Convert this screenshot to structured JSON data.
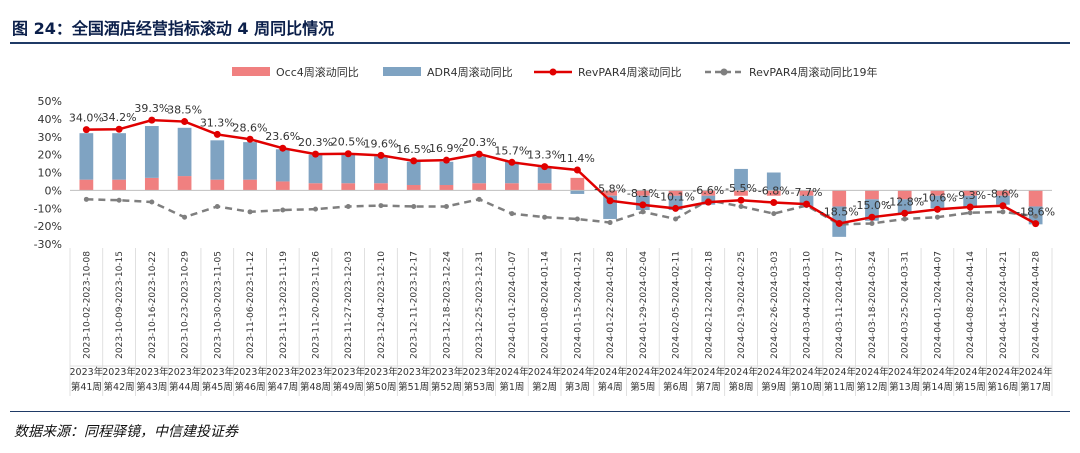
{
  "figure": {
    "title": "图 24：全国酒店经营指标滚动 4 周同比情况",
    "source": "数据来源：同程驿镜，中信建投证券"
  },
  "colors": {
    "occ": "#f08080",
    "adr": "#7fa3c2",
    "revpar": "#e00000",
    "revpar19": "#7f7f7f",
    "title": "#0b1f4a",
    "rule": "#1f3a66"
  },
  "chart_data": {
    "type": "bar",
    "title": "",
    "xlabel": "",
    "ylabel": "",
    "ylim": [
      -30,
      50
    ],
    "yticks": [
      "50%",
      "40%",
      "30%",
      "20%",
      "10%",
      "0%",
      "-10%",
      "-20%",
      "-30%"
    ],
    "grid": false,
    "legend_position": "top",
    "categories": [
      "2023-10-02-2023-10-08",
      "2023-10-09-2023-10-15",
      "2023-10-16-2023-10-22",
      "2023-10-23-2023-10-29",
      "2023-10-30-2023-11-05",
      "2023-11-06-2023-11-12",
      "2023-11-13-2023-11-19",
      "2023-11-20-2023-11-26",
      "2023-11-27-2023-12-03",
      "2023-12-04-2023-12-10",
      "2023-12-11-2023-12-17",
      "2023-12-18-2023-12-24",
      "2023-12-25-2023-12-31",
      "2024-01-01-2024-01-07",
      "2024-01-08-2024-01-14",
      "2024-01-15-2024-01-21",
      "2024-01-22-2024-01-28",
      "2024-01-29-2024-02-04",
      "2024-02-05-2024-02-11",
      "2024-02-12-2024-02-18",
      "2024-02-19-2024-02-25",
      "2024-02-26-2024-03-03",
      "2024-03-04-2024-03-10",
      "2024-03-11-2024-03-17",
      "2024-03-18-2024-03-24",
      "2024-03-25-2024-03-31",
      "2024-04-01-2024-04-07",
      "2024-04-08-2024-04-14",
      "2024-04-15-2024-04-21",
      "2024-04-22-2024-04-28"
    ],
    "week_labels": [
      [
        "2023年",
        "第41周"
      ],
      [
        "2023年",
        "第42周"
      ],
      [
        "2023年",
        "第43周"
      ],
      [
        "2023年",
        "第44周"
      ],
      [
        "2023年",
        "第45周"
      ],
      [
        "2023年",
        "第46周"
      ],
      [
        "2023年",
        "第47周"
      ],
      [
        "2023年",
        "第48周"
      ],
      [
        "2023年",
        "第49周"
      ],
      [
        "2023年",
        "第50周"
      ],
      [
        "2023年",
        "第51周"
      ],
      [
        "2023年",
        "第52周"
      ],
      [
        "2023年",
        "第53周"
      ],
      [
        "2024年",
        "第1周"
      ],
      [
        "2024年",
        "第2周"
      ],
      [
        "2024年",
        "第3周"
      ],
      [
        "2024年",
        "第4周"
      ],
      [
        "2024年",
        "第5周"
      ],
      [
        "2024年",
        "第6周"
      ],
      [
        "2024年",
        "第7周"
      ],
      [
        "2024年",
        "第8周"
      ],
      [
        "2024年",
        "第9周"
      ],
      [
        "2024年",
        "第10周"
      ],
      [
        "2024年",
        "第11周"
      ],
      [
        "2024年",
        "第12周"
      ],
      [
        "2024年",
        "第13周"
      ],
      [
        "2024年",
        "第14周"
      ],
      [
        "2024年",
        "第15周"
      ],
      [
        "2024年",
        "第16周"
      ],
      [
        "2024年",
        "第17周"
      ]
    ],
    "series": [
      {
        "name": "Occ4周滚动同比",
        "type": "bar",
        "values": [
          6,
          6,
          7,
          8,
          6,
          6,
          5,
          4,
          4,
          4,
          3,
          3,
          4,
          4,
          4,
          7,
          -3,
          -3,
          -3,
          -3,
          -3,
          -3,
          -3,
          -9,
          -5,
          -5,
          -3,
          -3,
          -3,
          -9
        ]
      },
      {
        "name": "ADR4周滚动同比",
        "type": "bar",
        "values": [
          26,
          26,
          29,
          27,
          22,
          21,
          18,
          16,
          16,
          15,
          13,
          13,
          15,
          12,
          9,
          -2,
          -13,
          -8,
          -8,
          -5,
          12,
          10,
          -6,
          -17,
          -12,
          -8,
          -7,
          -6,
          -5,
          -10
        ]
      },
      {
        "name": "RevPAR4周滚动同比",
        "type": "line",
        "values": [
          34.0,
          34.2,
          39.3,
          38.5,
          31.3,
          28.6,
          23.6,
          20.3,
          20.5,
          19.6,
          16.5,
          16.9,
          20.3,
          15.7,
          13.3,
          11.4,
          -5.8,
          -8.1,
          -10.1,
          -6.6,
          -5.5,
          -6.8,
          -7.7,
          -18.5,
          -15.0,
          -12.8,
          -10.6,
          -9.3,
          -8.6,
          -18.6
        ],
        "labels": [
          "34.0%",
          "34.2%",
          "39.3%",
          "38.5%",
          "31.3%",
          "28.6%",
          "23.6%",
          "20.3%",
          "20.5%",
          "19.6%",
          "16.5%",
          "16.9%",
          "20.3%",
          "15.7%",
          "13.3%",
          "11.4%",
          "-5.8%",
          "-8.1%",
          "-10.1%",
          "-6.6%",
          "-5.5%",
          "-6.8%",
          "-7.7%",
          "-18.5%",
          "-15.0%",
          "-12.8%",
          "-10.6%",
          "-9.3%",
          "-8.6%",
          "-18.6%"
        ]
      },
      {
        "name": "RevPAR4周滚动同比19年",
        "type": "line",
        "values": [
          -5,
          -5.5,
          -6.5,
          -15,
          -9,
          -12,
          -11,
          -10.5,
          -9,
          -8.5,
          -9,
          -9,
          -5,
          -13,
          -15,
          -16,
          -18,
          -12,
          -16,
          -5.5,
          -9,
          -13,
          -8.5,
          -19,
          -18.5,
          -16,
          -15,
          -12.5,
          -12,
          -14.5
        ]
      }
    ]
  }
}
